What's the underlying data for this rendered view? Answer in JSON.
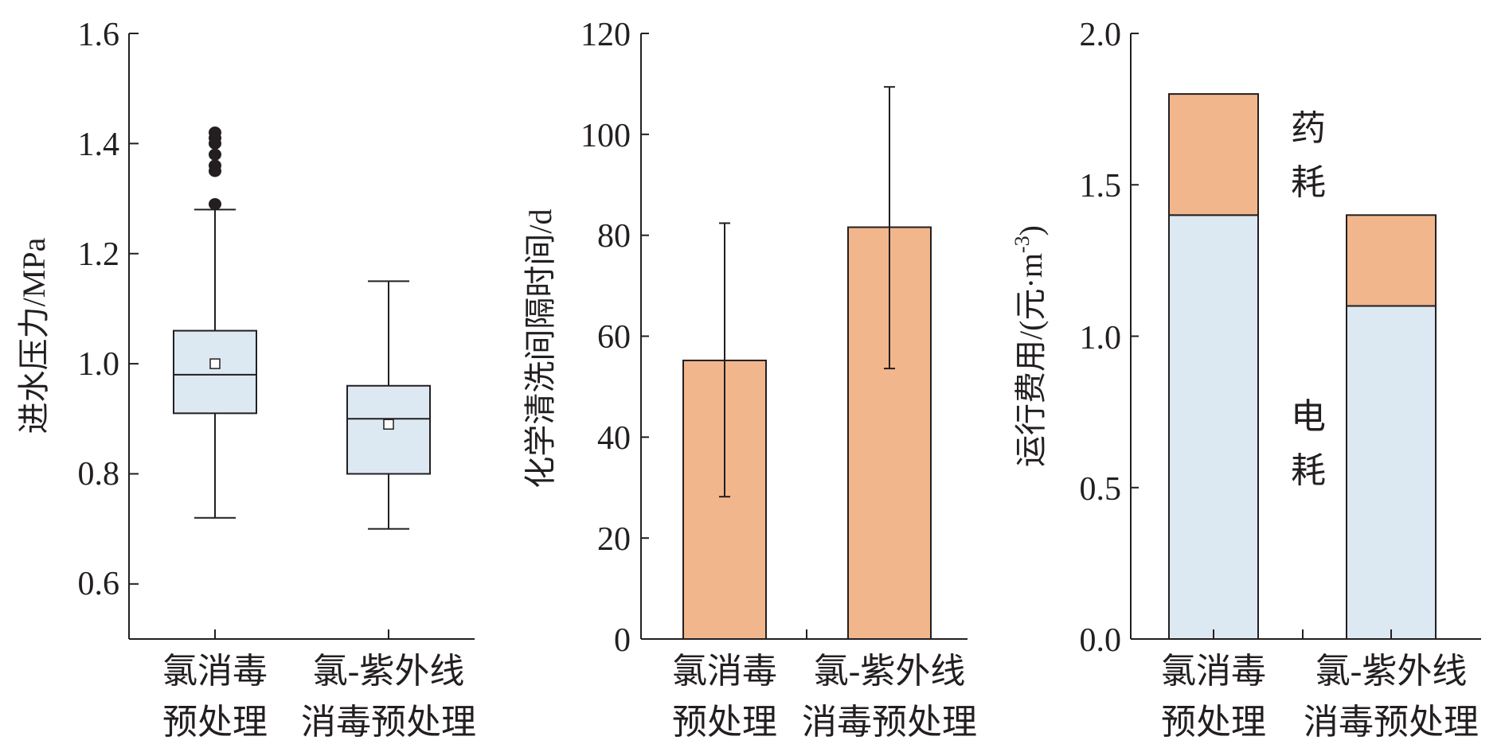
{
  "colors": {
    "box_fill": "#dce8f2",
    "bar_fill": "#f2b68c",
    "stack_bottom": "#dce8f2",
    "stack_top": "#f2b68c",
    "line": "#231f20"
  },
  "chart_data": [
    {
      "type": "box",
      "ylabel": "进水压力/MPa",
      "ylim": [
        0.5,
        1.6
      ],
      "yticks": [
        "0.6",
        "0.8",
        "1.0",
        "1.2",
        "1.4",
        "1.6"
      ],
      "categories": [
        {
          "line1": "氯消毒",
          "line2": "预处理"
        },
        {
          "line1": "氯-紫外线",
          "line2": "消毒预处理"
        }
      ],
      "boxes": [
        {
          "whisker_low": 0.72,
          "q1": 0.91,
          "median": 0.98,
          "q3": 1.06,
          "whisker_high": 1.28,
          "mean": 1.0,
          "outliers": [
            1.29,
            1.35,
            1.36,
            1.38,
            1.4,
            1.41,
            1.42
          ]
        },
        {
          "whisker_low": 0.7,
          "q1": 0.8,
          "median": 0.9,
          "q3": 0.96,
          "whisker_high": 1.15,
          "mean": 0.89,
          "outliers": []
        }
      ]
    },
    {
      "type": "bar",
      "ylabel": "化学清洗间隔时间/d",
      "ylim": [
        0,
        120
      ],
      "yticks": [
        "0",
        "20",
        "40",
        "60",
        "80",
        "100",
        "120"
      ],
      "categories": [
        {
          "line1": "氯消毒",
          "line2": "预处理"
        },
        {
          "line1": "氯-紫外线",
          "line2": "消毒预处理"
        }
      ],
      "values": [
        55.2,
        81.6
      ],
      "error_low": [
        28.2,
        53.6
      ],
      "error_high": [
        82.4,
        109.4
      ]
    },
    {
      "type": "bar",
      "stacked": true,
      "ylabel_main": "运行费用/(元·m",
      "ylabel_sup": "-3",
      "ylabel_end": ")",
      "ylim": [
        0,
        2.0
      ],
      "yticks": [
        "0.0",
        "0.5",
        "1.0",
        "1.5",
        "2.0"
      ],
      "categories": [
        {
          "line1": "氯消毒",
          "line2": "预处理"
        },
        {
          "line1": "氯-紫外线",
          "line2": "消毒预处理"
        }
      ],
      "series": [
        {
          "name": "电耗",
          "values": [
            1.4,
            1.1
          ]
        },
        {
          "name": "药耗",
          "values": [
            0.4,
            0.3
          ]
        }
      ],
      "series_labels": {
        "bottom": {
          "line1": "电",
          "line2": "耗"
        },
        "top": {
          "line1": "药",
          "line2": "耗"
        }
      }
    }
  ]
}
